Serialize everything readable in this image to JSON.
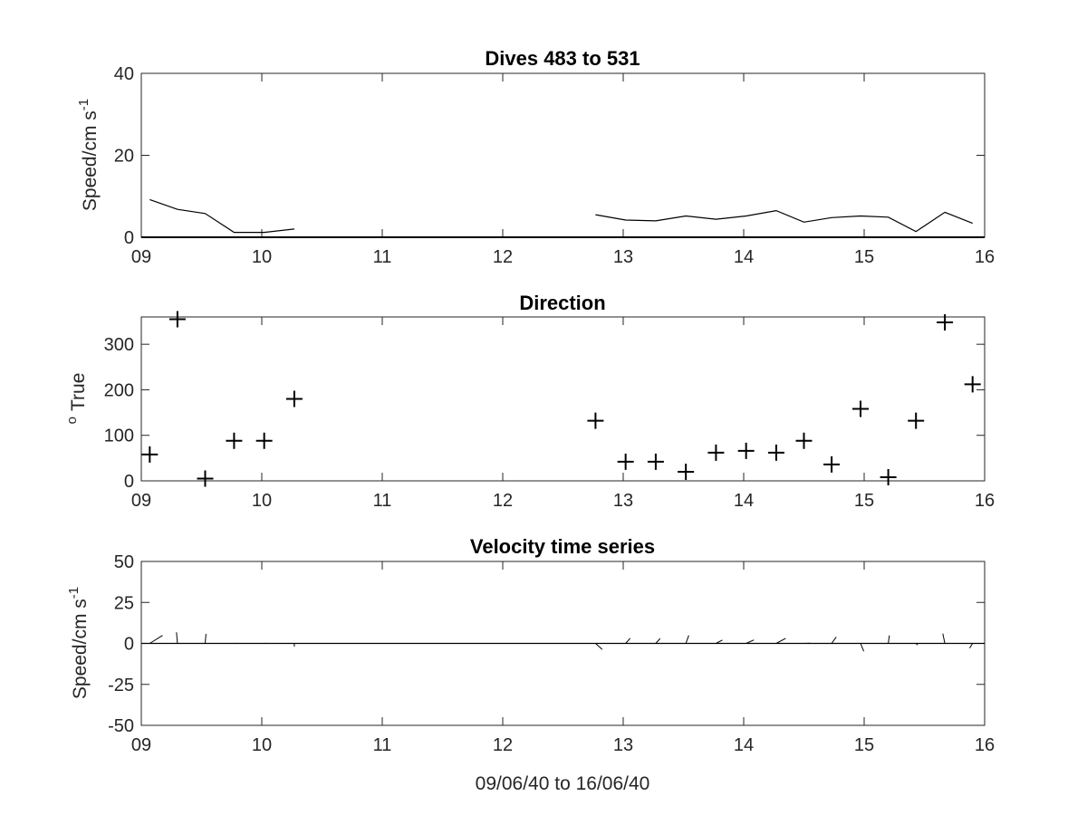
{
  "chart_data": [
    {
      "type": "line",
      "title": "Dives 483 to 531",
      "ylabel": "Speed/cm s",
      "ylabel_superscript": "-1",
      "xlabel": "",
      "xlim": [
        9,
        16
      ],
      "ylim": [
        0,
        40
      ],
      "xticks": [
        "09",
        "10",
        "11",
        "12",
        "13",
        "14",
        "15",
        "16"
      ],
      "yticks": [
        "0",
        "20",
        "40"
      ],
      "series": [
        {
          "segments": [
            {
              "x": [
                9.07,
                9.3,
                9.53,
                9.77,
                10.02,
                10.27
              ],
              "y": [
                9.2,
                6.8,
                5.8,
                1.2,
                1.2,
                2.0
              ]
            },
            {
              "x": [
                12.77,
                13.02,
                13.27,
                13.52,
                13.77,
                14.02,
                14.27,
                14.5,
                14.73,
                14.97,
                15.2,
                15.43,
                15.67,
                15.9
              ],
              "y": [
                5.5,
                4.2,
                4.0,
                5.2,
                4.4,
                5.2,
                6.5,
                3.7,
                4.8,
                5.2,
                4.9,
                1.4,
                6.1,
                3.4
              ]
            }
          ]
        }
      ],
      "zero_line": true,
      "grid": false
    },
    {
      "type": "scatter",
      "title": "Direction",
      "ylabel": "True",
      "ylabel_prefix": "o",
      "xlabel": "",
      "xlim": [
        9,
        16
      ],
      "ylim": [
        0,
        360
      ],
      "xticks": [
        "09",
        "10",
        "11",
        "12",
        "13",
        "14",
        "15",
        "16"
      ],
      "yticks": [
        "0",
        "100",
        "200",
        "300"
      ],
      "marker": "plus",
      "series": [
        {
          "x": [
            9.07,
            9.3,
            9.53,
            9.77,
            10.02,
            10.27,
            12.77,
            13.02,
            13.27,
            13.52,
            13.77,
            14.02,
            14.27,
            14.5,
            14.73,
            14.97,
            15.2,
            15.43,
            15.67,
            15.9
          ],
          "y": [
            58,
            355,
            5,
            88,
            88,
            180,
            132,
            42,
            42,
            20,
            62,
            66,
            62,
            88,
            36,
            158,
            8,
            132,
            348,
            212
          ]
        }
      ],
      "grid": false
    },
    {
      "type": "line",
      "subtype": "stick-plot",
      "title": "Velocity time series",
      "ylabel": "Speed/cm s",
      "ylabel_superscript": "-1",
      "xlabel": "09/06/40 to 16/06/40",
      "xlim": [
        9,
        16
      ],
      "ylim": [
        -50,
        50
      ],
      "xticks": [
        "09",
        "10",
        "11",
        "12",
        "13",
        "14",
        "15",
        "16"
      ],
      "yticks": [
        "-50",
        "-25",
        "0",
        "25",
        "50"
      ],
      "series": [
        {
          "x": [
            9.07,
            9.3,
            9.53,
            9.77,
            10.02,
            10.27,
            12.77,
            13.02,
            13.27,
            13.52,
            13.77,
            14.02,
            14.27,
            14.5,
            14.73,
            14.97,
            15.2,
            15.43,
            15.67,
            15.9
          ],
          "speed": [
            9.2,
            6.8,
            5.8,
            1.2,
            1.2,
            2.0,
            5.5,
            4.2,
            4.0,
            5.2,
            4.4,
            5.2,
            6.5,
            3.7,
            4.8,
            5.2,
            4.9,
            1.4,
            6.1,
            3.4
          ],
          "direction": [
            58,
            355,
            5,
            88,
            88,
            180,
            132,
            42,
            42,
            20,
            62,
            66,
            62,
            88,
            36,
            158,
            8,
            132,
            348,
            212
          ]
        }
      ],
      "zero_line": true,
      "grid": false
    }
  ]
}
